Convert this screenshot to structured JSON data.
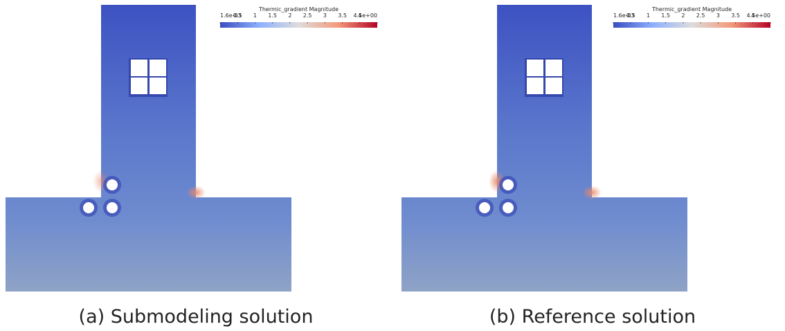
{
  "panels": [
    {
      "caption": "(a) Submodeling solution",
      "colorbar": {
        "title": "Thermic_gradient Magnitude",
        "ticks": [
          "1.6e-03",
          "0.5",
          "1",
          "1.5",
          "2",
          "2.5",
          "3",
          "3.5",
          "4",
          "4.5e+00"
        ]
      }
    },
    {
      "caption": "(b) Reference solution",
      "colorbar": {
        "title": "Thermic_gradient Magnitude",
        "ticks": [
          "1.6e-03",
          "0.5",
          "1",
          "1.5",
          "2",
          "2.5",
          "3",
          "3.5",
          "4",
          "4.5e+00"
        ]
      }
    }
  ]
}
